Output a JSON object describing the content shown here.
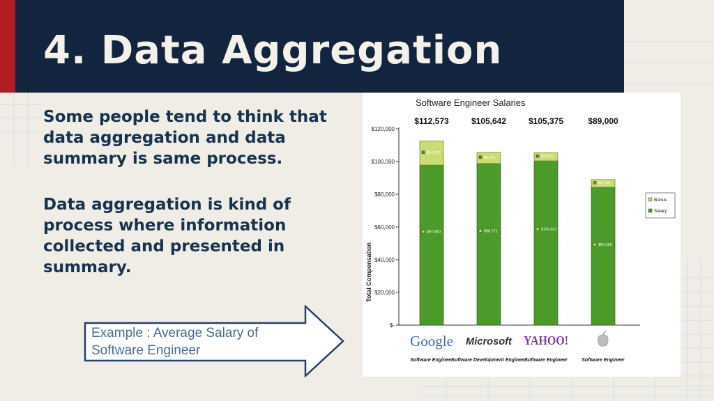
{
  "slide": {
    "title": "4. Data Aggregation",
    "paragraph1": "Some people tend to think that data aggregation and data summary is same process.",
    "paragraph2": "Data aggregation is kind of process where information collected and presented in summary.",
    "arrow_callout": "Example : Average Salary of Software Engineer"
  },
  "colors": {
    "title_bar": "#12243e",
    "accent_red": "#b11d22",
    "text": "#17324f",
    "salary": "#4c9a2a",
    "bonus": "#c9dd74"
  },
  "chart_data": {
    "type": "bar",
    "stacked": true,
    "title": "Software Engineer Salaries",
    "ylabel": "Total Compensation",
    "xlabel": "",
    "ylim": [
      0,
      120000
    ],
    "y_ticks": [
      "$-",
      "$20,000",
      "$40,000",
      "$60,000",
      "$80,000",
      "$100,000",
      "$120,000"
    ],
    "grid": false,
    "legend_position": "right",
    "totals": [
      "$112,573",
      "$105,642",
      "$105,375",
      "$89,000"
    ],
    "companies": [
      {
        "logo": "Google",
        "logo_icon": "google-logo",
        "role": "Software Engineer"
      },
      {
        "logo": "Microsoft",
        "logo_icon": "microsoft-logo",
        "role": "Software Development Engineer"
      },
      {
        "logo": "YAHOO!",
        "logo_icon": "yahoo-logo",
        "role": "Software Engineer"
      },
      {
        "logo": "",
        "logo_icon": "apple-logo",
        "role": "Software Engineer"
      }
    ],
    "series": [
      {
        "name": "Salary",
        "values": [
          97840,
          98771,
          100417,
          84250
        ],
        "labels": [
          "$97,840",
          "$98,771",
          "$100,417",
          "$84,250"
        ]
      },
      {
        "name": "Bonus",
        "values": [
          14733,
          6871,
          4958,
          4750
        ],
        "labels": [
          "$14,733",
          "$6,871",
          "$4,958",
          "$4,750"
        ]
      }
    ]
  }
}
